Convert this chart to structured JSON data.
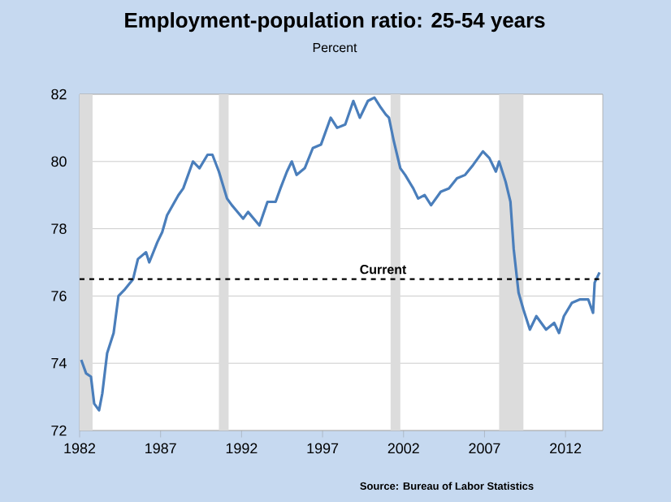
{
  "chart_data": {
    "type": "line",
    "title": "Employment-population ratio: 25-54 years",
    "subtitle": "Percent",
    "annotations": [
      "Source: Bureau of Labor Statistics"
    ],
    "x": [
      1982.1,
      1982.4,
      1982.7,
      1982.9,
      1983.2,
      1983.4,
      1983.7,
      1984.1,
      1984.4,
      1984.8,
      1985.3,
      1985.6,
      1986.1,
      1986.3,
      1986.8,
      1987.1,
      1987.4,
      1988.1,
      1988.4,
      1989.0,
      1989.4,
      1989.9,
      1990.2,
      1990.6,
      1991.1,
      1991.4,
      1992.1,
      1992.4,
      1993.1,
      1993.6,
      1994.1,
      1994.4,
      1994.8,
      1995.1,
      1995.4,
      1995.9,
      1996.4,
      1996.9,
      1997.5,
      1997.9,
      1998.4,
      1998.9,
      1999.3,
      1999.8,
      2000.2,
      2000.6,
      2000.9,
      2001.1,
      2001.4,
      2001.8,
      2002.1,
      2002.6,
      2002.9,
      2003.3,
      2003.7,
      2004.3,
      2004.8,
      2005.3,
      2005.8,
      2006.3,
      2006.9,
      2007.3,
      2007.7,
      2007.9,
      2008.3,
      2008.6,
      2008.8,
      2009.1,
      2009.4,
      2009.8,
      2010.2,
      2010.8,
      2011.3,
      2011.6,
      2011.9,
      2012.4,
      2012.9,
      2013.4,
      2013.7,
      2013.8,
      2014.1
    ],
    "series": [
      {
        "color": "#4a7ebb",
        "values": [
          74.1,
          73.7,
          73.6,
          72.8,
          72.6,
          73.1,
          74.3,
          74.9,
          76.0,
          76.2,
          76.5,
          77.1,
          77.3,
          77.0,
          77.6,
          77.9,
          78.4,
          79.0,
          79.2,
          80.0,
          79.8,
          80.2,
          80.2,
          79.7,
          78.9,
          78.7,
          78.3,
          78.5,
          78.1,
          78.8,
          78.8,
          79.2,
          79.7,
          80.0,
          79.6,
          79.8,
          80.4,
          80.5,
          81.3,
          81.0,
          81.1,
          81.8,
          81.3,
          81.8,
          81.9,
          81.6,
          81.4,
          81.3,
          80.6,
          79.8,
          79.6,
          79.2,
          78.9,
          79.0,
          78.7,
          79.1,
          79.2,
          79.5,
          79.6,
          79.9,
          80.3,
          80.1,
          79.7,
          80.0,
          79.4,
          78.8,
          77.4,
          76.1,
          75.6,
          75.0,
          75.4,
          75.0,
          75.2,
          74.9,
          75.4,
          75.8,
          75.9,
          75.9,
          75.5,
          76.4,
          76.7
        ]
      }
    ],
    "xlim": [
      1982,
      2014.3
    ],
    "xticks": [
      1982,
      1987,
      1992,
      1997,
      2002,
      2007,
      2012
    ],
    "ylim": [
      72,
      82
    ],
    "yticks": [
      72,
      74,
      76,
      78,
      80,
      82
    ],
    "grid": "y",
    "line_style": "solid",
    "marker": "none",
    "ref_lines": [
      {
        "axis": "y",
        "value": 76.5,
        "label": "Current",
        "color": "#000000",
        "line_style": "dashed"
      }
    ],
    "bands": [
      {
        "axis": "x",
        "from": 1982.0,
        "to": 1982.8,
        "color": "#dcdcdc"
      },
      {
        "axis": "x",
        "from": 1990.6,
        "to": 1991.2,
        "color": "#dcdcdc"
      },
      {
        "axis": "x",
        "from": 2001.2,
        "to": 2001.8,
        "color": "#dcdcdc"
      },
      {
        "axis": "x",
        "from": 2007.9,
        "to": 2009.4,
        "color": "#dcdcdc"
      }
    ]
  }
}
